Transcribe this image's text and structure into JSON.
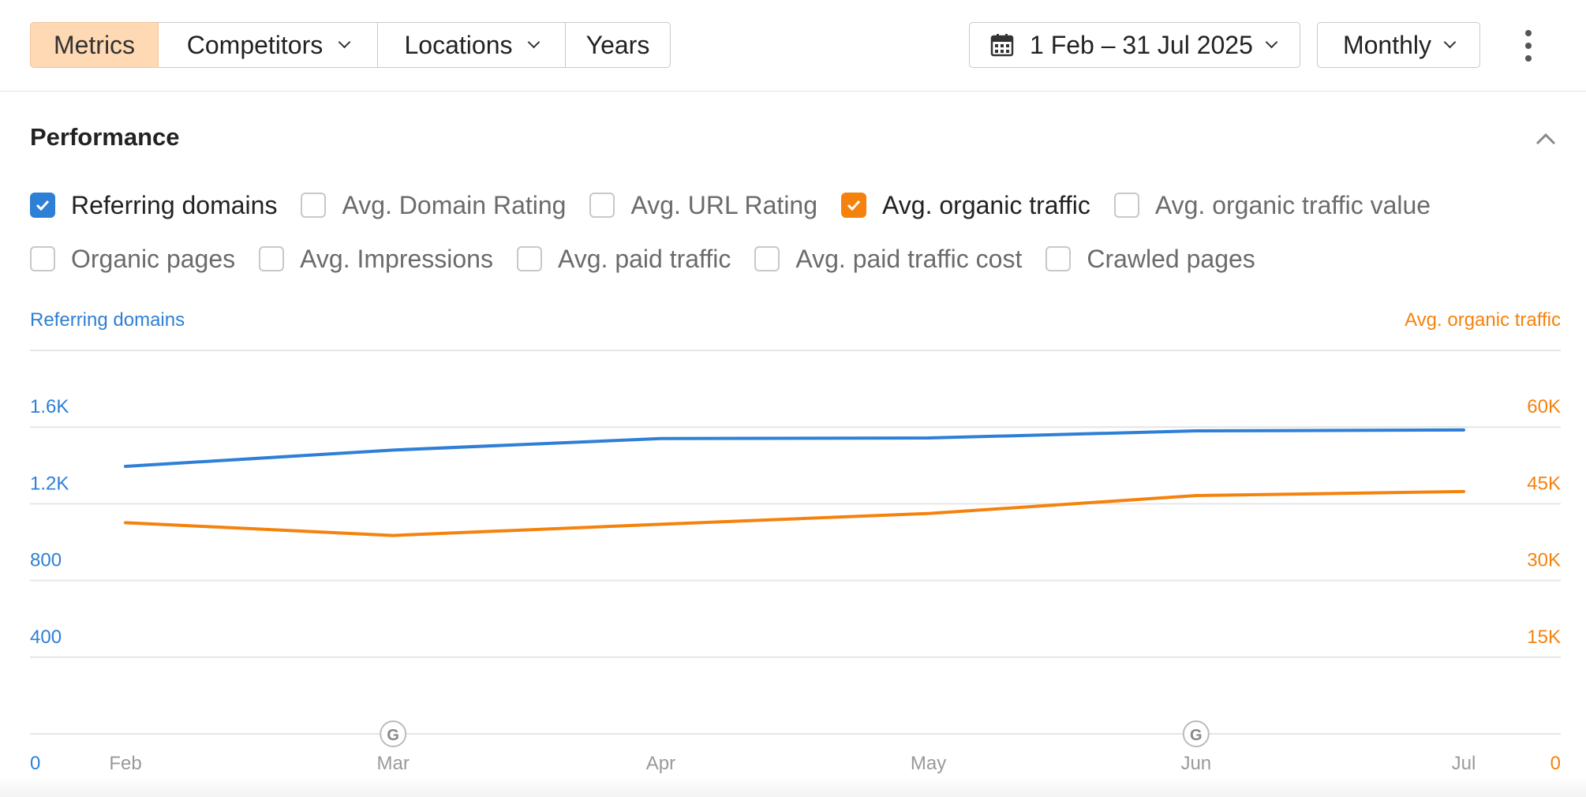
{
  "toolbar": {
    "tabs": [
      {
        "label": "Metrics",
        "active": true,
        "dropdown": false
      },
      {
        "label": "Competitors",
        "active": false,
        "dropdown": true
      },
      {
        "label": "Locations",
        "active": false,
        "dropdown": true
      },
      {
        "label": "Years",
        "active": false,
        "dropdown": false
      }
    ],
    "date_range": "1 Feb – 31 Jul 2025",
    "date_icon": "calendar-icon",
    "period": "Monthly",
    "more_icon": "kebab-menu-icon"
  },
  "performance": {
    "title": "Performance",
    "collapse_icon": "chevron-up-icon",
    "metrics": [
      {
        "label": "Referring domains",
        "checked": true,
        "color": "#2e7fd6"
      },
      {
        "label": "Avg. Domain Rating",
        "checked": false
      },
      {
        "label": "Avg. URL Rating",
        "checked": false
      },
      {
        "label": "Avg. organic traffic",
        "checked": true,
        "color": "#f5820d"
      },
      {
        "label": "Avg. organic traffic value",
        "checked": false
      },
      {
        "label": "Organic pages",
        "checked": false
      },
      {
        "label": "Avg. Impressions",
        "checked": false
      },
      {
        "label": "Avg. paid traffic",
        "checked": false
      },
      {
        "label": "Avg. paid traffic cost",
        "checked": false
      },
      {
        "label": "Crawled pages",
        "checked": false
      }
    ]
  },
  "chart_data": {
    "type": "line",
    "x": [
      "Feb",
      "Mar",
      "Apr",
      "May",
      "Jun",
      "Jul"
    ],
    "y_left": {
      "label": "Referring domains",
      "ticks": [
        "0",
        "400",
        "800",
        "1.2K",
        "1.6K"
      ],
      "range": [
        0,
        2000
      ],
      "color": "#2e7fd6"
    },
    "y_right": {
      "label": "Avg. organic traffic",
      "ticks": [
        "0",
        "15K",
        "30K",
        "45K",
        "60K"
      ],
      "range": [
        0,
        75000
      ],
      "color": "#f5820d"
    },
    "series": [
      {
        "name": "Referring domains",
        "axis": "left",
        "color": "#2e7fd6",
        "values": [
          1395,
          1480,
          1540,
          1543,
          1580,
          1585
        ]
      },
      {
        "name": "Avg. organic traffic",
        "axis": "right",
        "color": "#f5820d",
        "values": [
          41300,
          38800,
          41000,
          43100,
          46600,
          47400
        ]
      }
    ],
    "markers": [
      {
        "x": "Mar",
        "icon": "google-update-icon",
        "label": "G"
      },
      {
        "x": "Jun",
        "icon": "google-update-icon",
        "label": "G"
      }
    ],
    "grid": true
  }
}
